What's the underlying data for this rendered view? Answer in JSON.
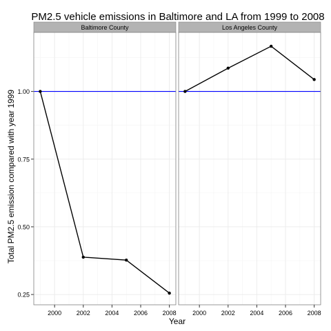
{
  "chart_data": {
    "type": "line",
    "title": "PM2.5 vehicle emissions in Baltimore and LA from 1999 to 2008",
    "xlabel": "Year",
    "ylabel": "Total PM2.5 emission compared with year 1999",
    "x": [
      1999,
      2002,
      2005,
      2008
    ],
    "xlim": [
      1998.55,
      2008.45
    ],
    "ylim": [
      0.212,
      1.218
    ],
    "xticks": [
      2000,
      2002,
      2004,
      2006,
      2008
    ],
    "yticks": [
      0.25,
      0.5,
      0.75,
      1.0
    ],
    "ytick_labels": [
      "0.25",
      "0.50",
      "0.75",
      "1.00"
    ],
    "reference_line": 1.0,
    "grid": true,
    "facets": [
      {
        "label": "Baltimore County",
        "values": [
          1.0,
          0.388,
          0.377,
          0.255
        ]
      },
      {
        "label": "Los Angeles County",
        "values": [
          1.0,
          1.086,
          1.167,
          1.044
        ]
      }
    ],
    "colors": {
      "line": "#000000",
      "reference": "#0000ff",
      "strip_bg": "#b3b3b3",
      "panel_border": "#7f7f7f",
      "grid": "#ececec"
    }
  }
}
